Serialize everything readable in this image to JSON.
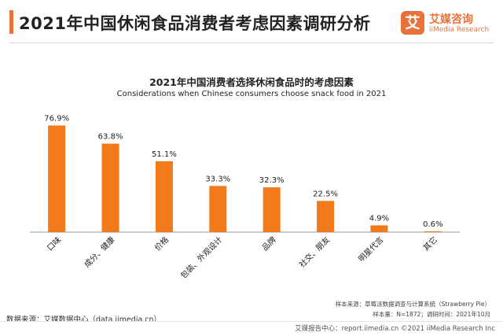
{
  "header": {
    "title": "2021年中国休闲食品消费者考虑因素调研分析",
    "logo_mark": "艾",
    "logo_cn": "艾媒咨询",
    "logo_en": "iiMedia Research"
  },
  "chart_data": {
    "type": "bar",
    "title": "2021年中国消费者选择休闲食品时的考虑因素",
    "subtitle": "Considerations when Chinese consumers choose snack food in 2021",
    "categories": [
      "口味",
      "成分、健康",
      "价格",
      "包装、外观设计",
      "品牌",
      "社交、朋友",
      "明星代言",
      "其它"
    ],
    "values": [
      76.9,
      63.8,
      51.1,
      33.3,
      32.3,
      22.5,
      4.9,
      0.6
    ],
    "data_labels": [
      "76.9%",
      "63.8%",
      "51.1%",
      "33.3%",
      "32.3%",
      "22.5%",
      "4.9%",
      "0.6%"
    ],
    "ylim": [
      0,
      80
    ],
    "grid": false,
    "bar_color": "#f07a1c"
  },
  "footer": {
    "source": "数据来源：艾媒数据中心（data.iimedia.cn）",
    "sample_source": "样本来源：草莓派数据调查与计算系统（Strawberry Pie）",
    "sample_info": "样本量：N=1872；调研时间：2021年10月",
    "report_line": "艾媒报告中心：report.iimedia.cn  ©2021  iiMedia Research  Inc"
  }
}
